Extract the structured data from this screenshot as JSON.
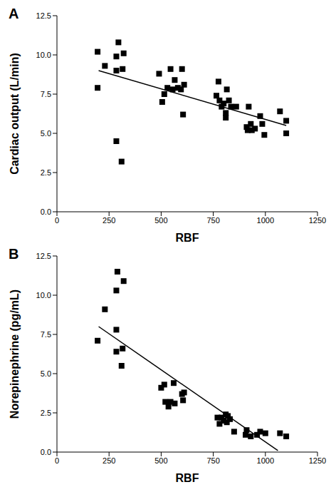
{
  "chart_data": [
    {
      "type": "scatter",
      "title": "A",
      "x_label": "RBF",
      "y_label": "Cardiac output (L/min)",
      "color": "#000000",
      "marker": "square",
      "x": [
        195,
        195,
        230,
        285,
        285,
        295,
        320,
        315,
        285,
        310,
        490,
        505,
        515,
        530,
        545,
        555,
        565,
        580,
        595,
        600,
        605,
        610,
        765,
        775,
        780,
        790,
        800,
        810,
        810,
        815,
        825,
        835,
        860,
        910,
        915,
        920,
        930,
        935,
        950,
        975,
        985,
        995,
        1070,
        1100,
        1100
      ],
      "values": [
        10.2,
        7.9,
        9.3,
        9.9,
        9.0,
        10.8,
        10.1,
        9.1,
        4.5,
        3.2,
        8.8,
        7.0,
        7.5,
        7.9,
        9.1,
        7.8,
        8.4,
        7.9,
        7.8,
        9.1,
        6.2,
        8.1,
        7.4,
        8.3,
        7.1,
        6.7,
        6.9,
        6.3,
        6.0,
        7.8,
        7.1,
        6.7,
        6.7,
        5.4,
        5.2,
        6.7,
        5.6,
        5.2,
        5.3,
        6.1,
        5.6,
        4.9,
        6.4,
        5.8,
        5.0
      ],
      "trend_line": {
        "x": [
          200,
          1100
        ],
        "values": [
          9.0,
          5.5
        ]
      },
      "xlim": [
        0,
        1250
      ],
      "xticks": [
        0,
        250,
        500,
        750,
        1000,
        1250
      ],
      "ylim": [
        0,
        12.5
      ],
      "yticks": [
        {
          "value": 0,
          "label": "0.0"
        },
        {
          "value": 2.5,
          "label": "2.5"
        },
        {
          "value": 5,
          "label": "5.0"
        },
        {
          "value": 7.5,
          "label": "7.5"
        },
        {
          "value": 10,
          "label": "10.0"
        },
        {
          "value": 12.5,
          "label": "12.5"
        }
      ],
      "grid": false
    },
    {
      "type": "scatter",
      "title": "B",
      "x_label": "RBF",
      "y_label": "Norepinephrine (pg/mL)",
      "color": "#000000",
      "marker": "square",
      "x": [
        195,
        230,
        285,
        290,
        285,
        285,
        315,
        320,
        310,
        500,
        515,
        520,
        535,
        545,
        560,
        565,
        600,
        605,
        610,
        770,
        780,
        790,
        800,
        810,
        815,
        820,
        830,
        850,
        905,
        910,
        930,
        960,
        975,
        1000,
        1070,
        1100
      ],
      "values": [
        7.1,
        9.1,
        10.3,
        11.5,
        7.8,
        6.4,
        6.6,
        10.9,
        5.5,
        4.1,
        4.3,
        3.2,
        2.9,
        3.2,
        4.4,
        3.1,
        3.7,
        3.3,
        3.8,
        2.2,
        1.8,
        2.2,
        2.0,
        2.4,
        1.9,
        2.3,
        2.1,
        1.3,
        1.1,
        1.4,
        1.0,
        1.1,
        1.3,
        1.2,
        1.2,
        1.0
      ],
      "trend_line": {
        "x": [
          200,
          1060
        ],
        "values": [
          8.0,
          0.1
        ]
      },
      "xlim": [
        0,
        1250
      ],
      "xticks": [
        0,
        250,
        500,
        750,
        1000,
        1250
      ],
      "ylim": [
        0,
        12.5
      ],
      "yticks": [
        {
          "value": 0,
          "label": "0.0"
        },
        {
          "value": 2.5,
          "label": "2.5"
        },
        {
          "value": 5,
          "label": "5.0"
        },
        {
          "value": 7.5,
          "label": "7.5"
        },
        {
          "value": 10,
          "label": "10.0"
        },
        {
          "value": 12.5,
          "label": "12.5"
        }
      ],
      "grid": false
    }
  ]
}
